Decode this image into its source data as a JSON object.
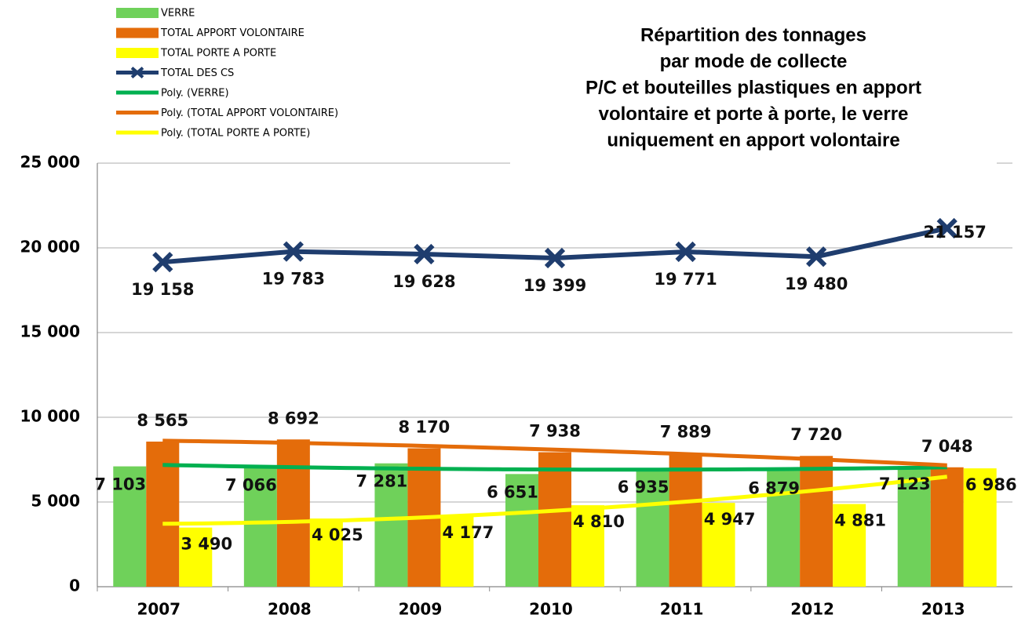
{
  "chart_data": {
    "type": "bar",
    "title": [
      "Répartition des tonnages",
      "par mode de collecte",
      "P/C et bouteilles plastiques en apport",
      "volontaire et porte à porte, le verre",
      "uniquement en apport volontaire"
    ],
    "categories": [
      "2007",
      "2008",
      "2009",
      "2010",
      "2011",
      "2012",
      "2013"
    ],
    "series": [
      {
        "name": "VERRE",
        "type": "bar",
        "color": "#6fd15a",
        "values": [
          7103,
          7066,
          7281,
          6651,
          6935,
          6879,
          7123
        ],
        "value_labels": [
          "7 103",
          "7 066",
          "7 281",
          "6 651",
          "6 935",
          "6 879",
          "7 123"
        ],
        "trendline": {
          "name": "Poly. (VERRE)",
          "color": "#00b050",
          "order": 2
        }
      },
      {
        "name": "TOTAL APPORT VOLONTAIRE",
        "type": "bar",
        "color": "#e46c0a",
        "values": [
          8565,
          8692,
          8170,
          7938,
          7889,
          7720,
          7048
        ],
        "value_labels": [
          "8 565",
          "8 692",
          "8 170",
          "7 938",
          "7 889",
          "7 720",
          "7 048"
        ],
        "trendline": {
          "name": "Poly. (TOTAL APPORT VOLONTAIRE)",
          "color": "#e46c0a",
          "order": 2
        }
      },
      {
        "name": "TOTAL  PORTE A PORTE",
        "type": "bar",
        "color": "#ffff00",
        "values": [
          3490,
          4025,
          4177,
          4810,
          4947,
          4881,
          6986
        ],
        "value_labels": [
          "3 490",
          "4 025",
          "4 177",
          "4 810",
          "4 947",
          "4 881",
          "6 986"
        ],
        "trendline": {
          "name": "Poly. (TOTAL  PORTE A PORTE)",
          "color": "#ffff00",
          "order": 2
        }
      },
      {
        "name": "TOTAL  DES CS",
        "type": "line",
        "color": "#1f3d6e",
        "values": [
          19158,
          19783,
          19628,
          19399,
          19771,
          19480,
          21157
        ],
        "value_labels": [
          "19 158",
          "19 783",
          "19 628",
          "19 399",
          "19 771",
          "19 480",
          "21 157"
        ]
      }
    ],
    "ylim": [
      0,
      25000
    ],
    "yticks": [
      {
        "value": 0,
        "label": "0"
      },
      {
        "value": 5000,
        "label": "5 000"
      },
      {
        "value": 10000,
        "label": "10 000"
      },
      {
        "value": 15000,
        "label": "15 000"
      },
      {
        "value": 20000,
        "label": "20 000"
      },
      {
        "value": 25000,
        "label": "25 000"
      }
    ],
    "grid": true,
    "legend": "top-left"
  }
}
